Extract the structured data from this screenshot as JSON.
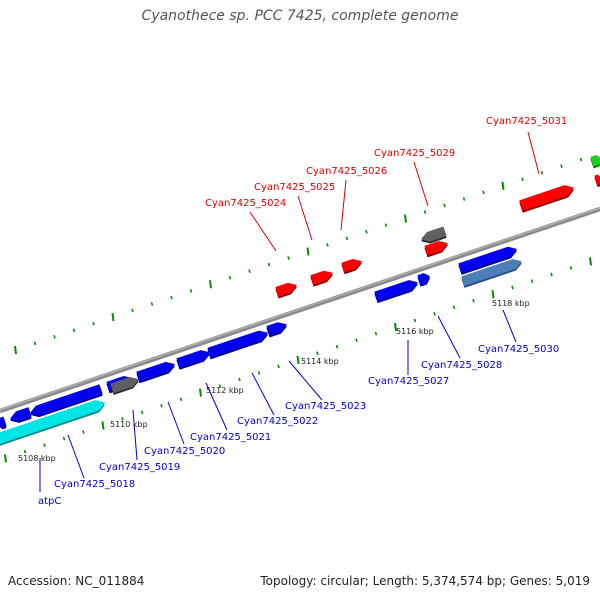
{
  "title": "Cyanothece sp. PCC 7425, complete genome",
  "footer": {
    "accession": "Accession: NC_011884",
    "stats": "Topology: circular; Length: 5,374,574 bp; Genes: 5,019"
  },
  "colors": {
    "forward_gene": "#ff0000",
    "reverse_gene": "#0000ee",
    "other_forward": "#606060",
    "rna_gene": "#00e5e5",
    "steel_gene": "#4a7fb8",
    "tick": "#0a8a0a",
    "axis": "#777777",
    "label_forward": "#dd0000",
    "label_reverse": "#0000cc"
  },
  "scale_labels": [
    "5108 kbp",
    "5110 kbp",
    "5112 kbp",
    "5114 kbp",
    "5116 kbp",
    "5118 kbp"
  ],
  "gene_labels_forward": [
    "Cyan7425_5024",
    "Cyan7425_5025",
    "Cyan7425_5026",
    "Cyan7425_5029",
    "Cyan7425_5031"
  ],
  "gene_labels_reverse": [
    "atpC",
    "Cyan7425_5018",
    "Cyan7425_5019",
    "Cyan7425_5020",
    "Cyan7425_5021",
    "Cyan7425_5022",
    "Cyan7425_5023",
    "Cyan7425_5027",
    "Cyan7425_5028",
    "Cyan7425_5030"
  ]
}
